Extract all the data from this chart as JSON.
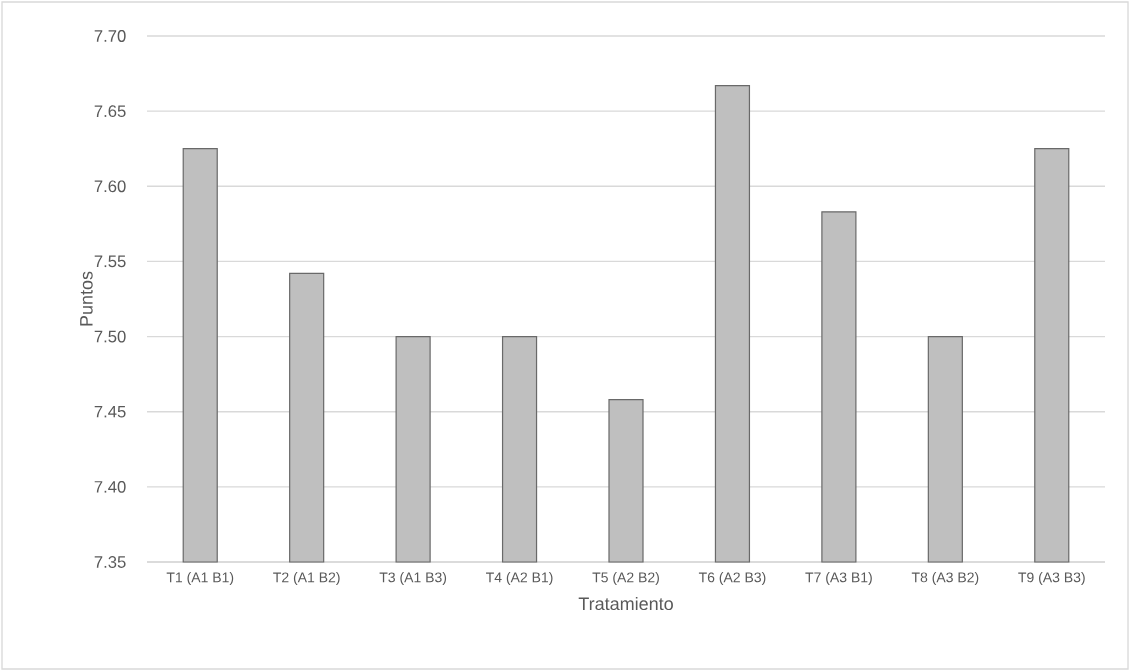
{
  "chart_data": {
    "type": "bar",
    "xlabel": "Tratamiento",
    "ylabel": "Puntos",
    "categories": [
      "T1 (A1 B1)",
      "T2 (A1 B2)",
      "T3 (A1 B3)",
      "T4 (A2 B1)",
      "T5 (A2 B2)",
      "T6 (A2 B3)",
      "T7 (A3 B1)",
      "T8 (A3 B2)",
      "T9 (A3 B3)"
    ],
    "values": [
      7.625,
      7.542,
      7.5,
      7.5,
      7.458,
      7.667,
      7.583,
      7.5,
      7.625
    ],
    "color": "#bfbfbf",
    "ylim": [
      7.35,
      7.7
    ],
    "yticks": [
      7.35,
      {
        "value": 7.4,
        "label": "7.40"
      },
      7.45,
      {
        "value": 7.5,
        "label": "7.50"
      },
      7.55,
      {
        "value": 7.6,
        "label": "7.60"
      },
      7.65,
      {
        "value": 7.7,
        "label": "7.70"
      }
    ],
    "grid": "y"
  }
}
